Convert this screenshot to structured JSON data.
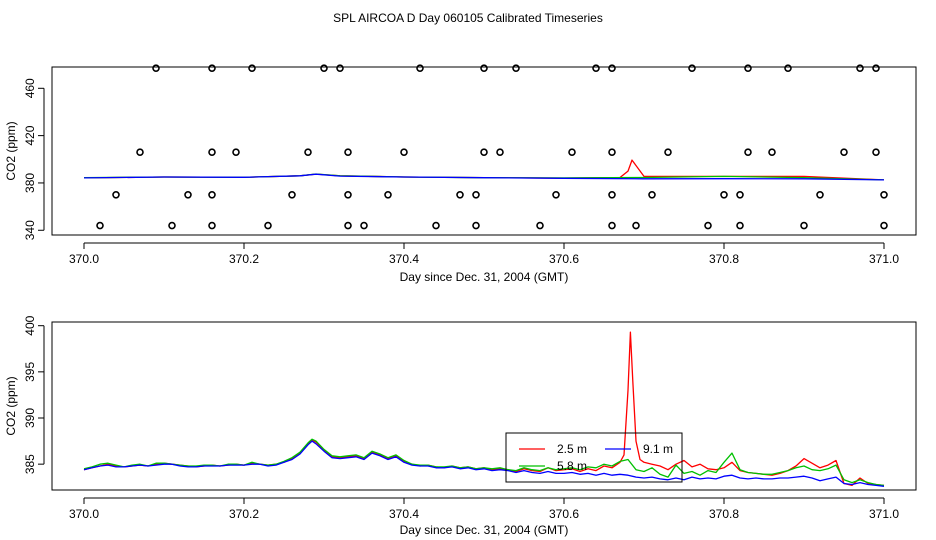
{
  "title": "SPL AIRCOA D  Day 060105  Calibrated Timeseries",
  "colors": {
    "2.5 m": "#ff0000",
    "5.8 m": "#00c000",
    "9.1 m": "#0000ff"
  },
  "chart_data": [
    {
      "type": "line",
      "xlabel": "Day since Dec. 31, 2004 (GMT)",
      "ylabel": "CO2 (ppm)",
      "xlim": [
        370.0,
        371.0
      ],
      "ylim": [
        336,
        478
      ],
      "x_ticks": [
        "370.0",
        "370.2",
        "370.4",
        "370.6",
        "370.8",
        "371.0"
      ],
      "y_ticks": [
        "340",
        "380",
        "420",
        "460"
      ],
      "grid": false,
      "calibration_markers": {
        "type": "scatter",
        "levels": [
          {
            "y": 477,
            "x": [
              370.09,
              370.16,
              370.21,
              370.3,
              370.32,
              370.42,
              370.5,
              370.54,
              370.64,
              370.66,
              370.76,
              370.83,
              370.88,
              370.97,
              370.99
            ]
          },
          {
            "y": 406,
            "x": [
              370.07,
              370.16,
              370.19,
              370.28,
              370.33,
              370.4,
              370.5,
              370.52,
              370.61,
              370.66,
              370.73,
              370.83,
              370.86,
              370.95,
              370.99
            ]
          },
          {
            "y": 370,
            "x": [
              370.04,
              370.13,
              370.16,
              370.26,
              370.33,
              370.38,
              370.47,
              370.49,
              370.59,
              370.66,
              370.71,
              370.8,
              370.82,
              370.92,
              371.0
            ]
          },
          {
            "y": 344,
            "x": [
              370.02,
              370.11,
              370.16,
              370.23,
              370.33,
              370.35,
              370.44,
              370.49,
              370.57,
              370.66,
              370.69,
              370.78,
              370.82,
              370.9,
              371.0
            ]
          }
        ]
      },
      "series": [
        {
          "name": "2.5 m",
          "x": [
            370.0,
            370.1,
            370.2,
            370.27,
            370.29,
            370.32,
            370.4,
            370.5,
            370.6,
            370.67,
            370.68,
            370.685,
            370.7,
            370.8,
            370.9,
            371.0
          ],
          "values": [
            384.3,
            385.0,
            384.8,
            386.0,
            387.5,
            386.0,
            385.0,
            384.5,
            384.0,
            384.6,
            390.0,
            399.3,
            385.5,
            385.5,
            385.5,
            382.6
          ]
        },
        {
          "name": "5.8 m",
          "x": [
            370.0,
            370.1,
            370.2,
            370.27,
            370.29,
            370.32,
            370.4,
            370.5,
            370.6,
            370.7,
            370.8,
            370.9,
            371.0
          ],
          "values": [
            384.4,
            385.0,
            384.8,
            386.0,
            387.6,
            386.0,
            385.0,
            384.4,
            384.3,
            384.6,
            385.5,
            384.5,
            382.6
          ]
        },
        {
          "name": "9.1 m",
          "x": [
            370.0,
            370.1,
            370.2,
            370.27,
            370.29,
            370.32,
            370.4,
            370.5,
            370.6,
            370.7,
            370.8,
            370.9,
            371.0
          ],
          "values": [
            384.3,
            385.0,
            384.8,
            386.0,
            387.4,
            385.8,
            385.0,
            384.4,
            383.9,
            383.5,
            383.6,
            383.5,
            382.6
          ]
        }
      ]
    },
    {
      "type": "line",
      "xlabel": "Day since Dec. 31, 2004 (GMT)",
      "ylabel": "CO2 (ppm)",
      "xlim": [
        370.0,
        371.0
      ],
      "ylim": [
        382.2,
        400.4
      ],
      "x_ticks": [
        "370.0",
        "370.2",
        "370.4",
        "370.6",
        "370.8",
        "371.0"
      ],
      "y_ticks": [
        "385",
        "390",
        "395",
        "400"
      ],
      "grid": false,
      "legend": {
        "placement": "bottom-center",
        "entries": [
          "2.5 m",
          "5.8 m",
          "9.1 m"
        ]
      },
      "series": [
        {
          "name": "2.5 m",
          "x": [
            370.0,
            370.01,
            370.02,
            370.03,
            370.04,
            370.05,
            370.06,
            370.07,
            370.08,
            370.09,
            370.1,
            370.11,
            370.12,
            370.13,
            370.14,
            370.15,
            370.16,
            370.17,
            370.18,
            370.19,
            370.2,
            370.21,
            370.22,
            370.23,
            370.24,
            370.25,
            370.26,
            370.27,
            370.28,
            370.285,
            370.29,
            370.3,
            370.31,
            370.32,
            370.33,
            370.34,
            370.35,
            370.36,
            370.37,
            370.38,
            370.39,
            370.4,
            370.41,
            370.42,
            370.43,
            370.44,
            370.45,
            370.46,
            370.47,
            370.48,
            370.49,
            370.5,
            370.51,
            370.52,
            370.53,
            370.54,
            370.55,
            370.56,
            370.57,
            370.58,
            370.59,
            370.6,
            370.61,
            370.62,
            370.63,
            370.64,
            370.65,
            370.66,
            370.67,
            370.675,
            370.68,
            370.683,
            370.686,
            370.69,
            370.695,
            370.7,
            370.71,
            370.72,
            370.73,
            370.74,
            370.75,
            370.76,
            370.77,
            370.78,
            370.79,
            370.8,
            370.81,
            370.82,
            370.83,
            370.84,
            370.85,
            370.86,
            370.87,
            370.88,
            370.89,
            370.9,
            370.91,
            370.92,
            370.93,
            370.94,
            370.95,
            370.96,
            370.97,
            370.98,
            370.99,
            371.0
          ],
          "values": [
            384.4,
            384.6,
            384.8,
            385.0,
            384.8,
            384.7,
            384.8,
            384.9,
            384.8,
            385.0,
            385.1,
            385.0,
            384.9,
            384.8,
            384.7,
            384.8,
            384.9,
            384.8,
            384.9,
            385.0,
            384.9,
            385.1,
            385.0,
            384.9,
            385.0,
            385.2,
            385.6,
            386.2,
            387.2,
            387.6,
            387.4,
            386.5,
            385.8,
            385.7,
            385.8,
            385.9,
            385.6,
            386.3,
            386.0,
            385.6,
            385.9,
            385.3,
            385.0,
            384.8,
            384.9,
            384.7,
            384.6,
            384.8,
            384.6,
            384.7,
            384.5,
            384.6,
            384.4,
            384.5,
            384.4,
            384.2,
            384.5,
            384.3,
            384.2,
            384.6,
            384.3,
            384.4,
            384.5,
            384.2,
            384.5,
            384.3,
            384.8,
            384.6,
            385.2,
            386.0,
            393.0,
            399.3,
            394.0,
            387.5,
            385.5,
            385.2,
            385.0,
            384.8,
            384.4,
            385.0,
            385.4,
            384.7,
            385.0,
            384.5,
            384.4,
            384.6,
            385.2,
            384.3,
            384.1,
            384.0,
            383.9,
            383.8,
            384.0,
            384.3,
            384.8,
            385.6,
            385.1,
            384.6,
            384.9,
            385.4,
            382.9,
            382.7,
            383.5,
            382.9,
            382.8,
            382.7
          ]
        },
        {
          "name": "5.8 m",
          "x": [
            370.0,
            370.01,
            370.02,
            370.03,
            370.04,
            370.05,
            370.06,
            370.07,
            370.08,
            370.09,
            370.1,
            370.11,
            370.12,
            370.13,
            370.14,
            370.15,
            370.16,
            370.17,
            370.18,
            370.19,
            370.2,
            370.21,
            370.22,
            370.23,
            370.24,
            370.25,
            370.26,
            370.27,
            370.28,
            370.285,
            370.29,
            370.3,
            370.31,
            370.32,
            370.33,
            370.34,
            370.35,
            370.36,
            370.37,
            370.38,
            370.39,
            370.4,
            370.41,
            370.42,
            370.43,
            370.44,
            370.45,
            370.46,
            370.47,
            370.48,
            370.49,
            370.5,
            370.51,
            370.52,
            370.53,
            370.54,
            370.55,
            370.56,
            370.57,
            370.58,
            370.59,
            370.6,
            370.61,
            370.62,
            370.63,
            370.64,
            370.65,
            370.66,
            370.67,
            370.68,
            370.69,
            370.7,
            370.71,
            370.72,
            370.73,
            370.74,
            370.75,
            370.76,
            370.77,
            370.78,
            370.79,
            370.8,
            370.81,
            370.82,
            370.83,
            370.84,
            370.85,
            370.86,
            370.87,
            370.88,
            370.89,
            370.9,
            370.91,
            370.92,
            370.93,
            370.94,
            370.95,
            370.96,
            370.97,
            370.98,
            370.99,
            371.0
          ],
          "values": [
            384.5,
            384.7,
            385.0,
            385.1,
            384.9,
            384.7,
            384.9,
            385.0,
            384.8,
            385.1,
            385.1,
            385.0,
            384.9,
            384.8,
            384.8,
            384.9,
            384.9,
            384.8,
            385.0,
            385.0,
            384.9,
            385.2,
            385.0,
            384.9,
            385.0,
            385.3,
            385.7,
            386.3,
            387.3,
            387.7,
            387.5,
            386.6,
            385.9,
            385.8,
            385.9,
            386.0,
            385.7,
            386.4,
            386.1,
            385.7,
            386.0,
            385.4,
            385.0,
            384.9,
            384.9,
            384.7,
            384.7,
            384.8,
            384.6,
            384.7,
            384.5,
            384.6,
            384.5,
            384.6,
            384.4,
            384.3,
            384.6,
            384.4,
            384.3,
            384.6,
            384.4,
            384.5,
            384.6,
            384.4,
            384.7,
            384.6,
            385.0,
            384.8,
            385.3,
            385.5,
            384.4,
            384.2,
            384.6,
            383.9,
            383.6,
            384.9,
            384.0,
            384.2,
            383.8,
            384.3,
            384.1,
            385.2,
            386.2,
            384.4,
            384.1,
            384.0,
            383.9,
            383.9,
            384.1,
            384.3,
            384.6,
            384.8,
            384.4,
            384.3,
            384.5,
            384.9,
            383.3,
            383.0,
            383.3,
            383.0,
            382.8,
            382.7
          ]
        },
        {
          "name": "9.1 m",
          "x": [
            370.0,
            370.01,
            370.02,
            370.03,
            370.04,
            370.05,
            370.06,
            370.07,
            370.08,
            370.09,
            370.1,
            370.11,
            370.12,
            370.13,
            370.14,
            370.15,
            370.16,
            370.17,
            370.18,
            370.19,
            370.2,
            370.21,
            370.22,
            370.23,
            370.24,
            370.25,
            370.26,
            370.27,
            370.28,
            370.285,
            370.29,
            370.3,
            370.31,
            370.32,
            370.33,
            370.34,
            370.35,
            370.36,
            370.37,
            370.38,
            370.39,
            370.4,
            370.41,
            370.42,
            370.43,
            370.44,
            370.45,
            370.46,
            370.47,
            370.48,
            370.49,
            370.5,
            370.51,
            370.52,
            370.53,
            370.54,
            370.55,
            370.56,
            370.57,
            370.58,
            370.59,
            370.6,
            370.61,
            370.62,
            370.63,
            370.64,
            370.65,
            370.66,
            370.67,
            370.68,
            370.69,
            370.7,
            370.71,
            370.72,
            370.73,
            370.74,
            370.75,
            370.76,
            370.77,
            370.78,
            370.79,
            370.8,
            370.81,
            370.82,
            370.83,
            370.84,
            370.85,
            370.86,
            370.87,
            370.88,
            370.89,
            370.9,
            370.91,
            370.92,
            370.93,
            370.94,
            370.95,
            370.96,
            370.97,
            370.98,
            370.99,
            371.0
          ],
          "values": [
            384.4,
            384.6,
            384.8,
            384.9,
            384.7,
            384.7,
            384.8,
            384.9,
            384.8,
            384.9,
            385.0,
            385.0,
            384.8,
            384.7,
            384.7,
            384.8,
            384.8,
            384.8,
            384.9,
            384.9,
            384.9,
            385.0,
            385.0,
            384.8,
            384.9,
            385.2,
            385.5,
            386.1,
            387.1,
            387.5,
            387.2,
            386.4,
            385.7,
            385.6,
            385.7,
            385.8,
            385.5,
            386.2,
            385.9,
            385.5,
            385.8,
            385.2,
            384.9,
            384.8,
            384.8,
            384.6,
            384.6,
            384.7,
            384.5,
            384.6,
            384.4,
            384.5,
            384.3,
            384.4,
            384.3,
            384.1,
            384.3,
            384.1,
            384.0,
            384.2,
            384.0,
            384.0,
            384.1,
            383.9,
            384.0,
            383.8,
            384.0,
            383.8,
            383.9,
            383.8,
            383.6,
            383.5,
            383.6,
            383.4,
            383.3,
            383.5,
            383.3,
            383.6,
            383.4,
            383.5,
            383.4,
            383.7,
            383.8,
            383.5,
            383.4,
            383.5,
            383.4,
            383.4,
            383.5,
            383.5,
            383.6,
            383.7,
            383.5,
            383.2,
            383.4,
            383.6,
            382.9,
            382.8,
            383.0,
            382.8,
            382.7,
            382.6
          ]
        }
      ]
    }
  ]
}
